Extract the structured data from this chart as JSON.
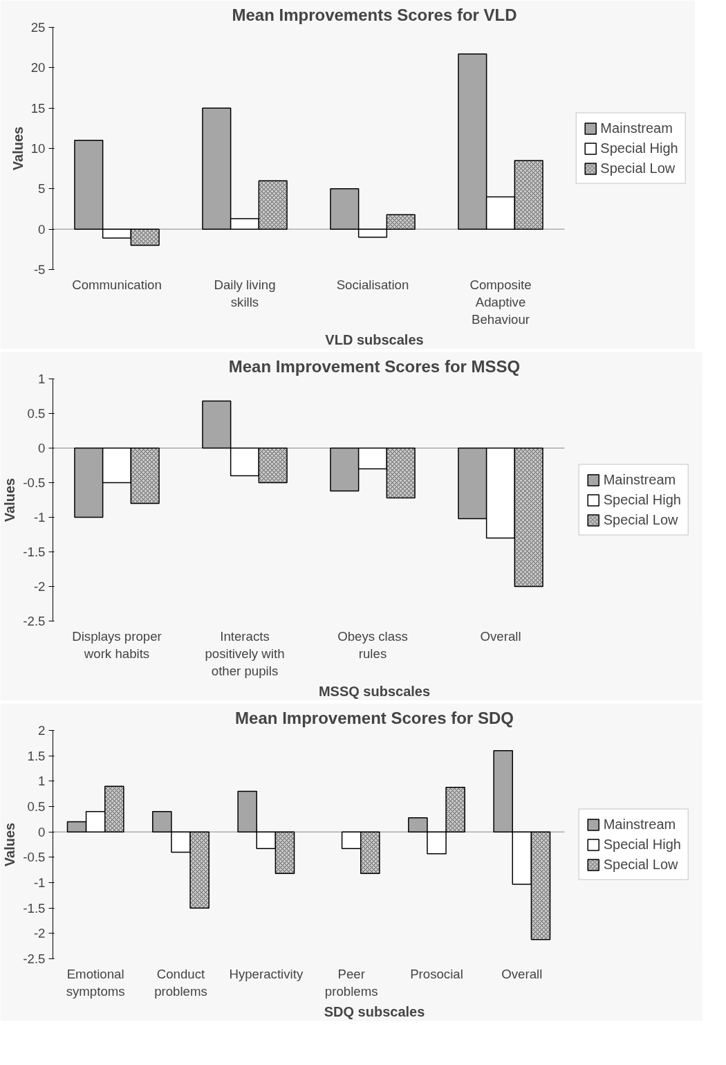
{
  "chart_data": [
    {
      "type": "bar",
      "title": "Mean Improvements Scores for VLD",
      "xlabel": "VLD subscales",
      "ylabel": "Values",
      "categories": [
        "Communication",
        "Daily living skills",
        "Socialisation",
        "Composite Adaptive Behaviour"
      ],
      "series": [
        {
          "name": "Mainstream",
          "color": "#a6a6a6",
          "values": [
            11,
            15,
            5,
            21.7
          ]
        },
        {
          "name": "Special High",
          "color": "#ffffff",
          "values": [
            -1.1,
            1.3,
            -1,
            4
          ]
        },
        {
          "name": "Special Low",
          "color": "#c8c8c8",
          "values": [
            -2,
            6,
            1.8,
            8.5
          ]
        }
      ],
      "ylim": [
        -5,
        25
      ],
      "yticks": [
        -5,
        0,
        5,
        10,
        15,
        20,
        25
      ],
      "legend": "right"
    },
    {
      "type": "bar",
      "title": "Mean Improvement Scores for MSSQ",
      "xlabel": "MSSQ subscales",
      "ylabel": "Values",
      "categories": [
        "Displays proper work habits",
        "Interacts positively with other pupils",
        "Obeys class rules",
        "Overall"
      ],
      "series": [
        {
          "name": "Mainstream",
          "color": "#a6a6a6",
          "values": [
            -1,
            0.68,
            -0.62,
            -1.02
          ]
        },
        {
          "name": "Special High",
          "color": "#ffffff",
          "values": [
            -0.5,
            -0.4,
            -0.3,
            -1.3
          ]
        },
        {
          "name": "Special Low",
          "color": "#c8c8c8",
          "values": [
            -0.8,
            -0.5,
            -0.72,
            -2
          ]
        }
      ],
      "ylim": [
        -2.5,
        1
      ],
      "yticks": [
        -2.5,
        -2,
        -1.5,
        -1,
        -0.5,
        0,
        0.5,
        1
      ],
      "legend": "right"
    },
    {
      "type": "bar",
      "title": "Mean Improvement Scores for SDQ",
      "xlabel": "SDQ subscales",
      "ylabel": "Values",
      "categories": [
        "Emotional symptoms",
        "Conduct problems",
        "Hyperactivity",
        "Peer problems",
        "Prosocial",
        "Overall"
      ],
      "series": [
        {
          "name": "Mainstream",
          "color": "#a6a6a6",
          "values": [
            0.2,
            0.4,
            0.8,
            null,
            0.28,
            1.6
          ]
        },
        {
          "name": "Special High",
          "color": "#ffffff",
          "values": [
            0.4,
            -0.4,
            -0.33,
            -0.33,
            -0.43,
            -1.03
          ]
        },
        {
          "name": "Special Low",
          "color": "#c8c8c8",
          "values": [
            0.9,
            -1.5,
            -0.82,
            -0.82,
            0.88,
            -2.12
          ]
        }
      ],
      "ylim": [
        -2.5,
        2
      ],
      "yticks": [
        -2.5,
        -2,
        -1.5,
        -1,
        -0.5,
        0,
        0.5,
        1,
        1.5,
        2
      ],
      "legend": "right"
    }
  ]
}
